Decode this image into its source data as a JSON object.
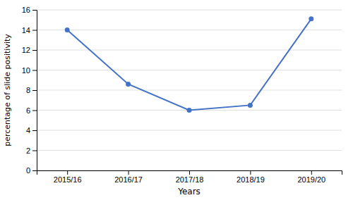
{
  "chart_data": {
    "type": "line",
    "categories": [
      "2015/16",
      "2016/17",
      "2017/18",
      "2018/19",
      "2019/20"
    ],
    "values": [
      14.0,
      8.6,
      6.0,
      6.5,
      15.1
    ],
    "color": "#4472C4",
    "marker": "circle",
    "xlabel": "Years",
    "ylabel": "percentage of slide positivity",
    "ylim": [
      0,
      16
    ],
    "yticks": [
      0,
      2,
      4,
      6,
      8,
      10,
      12,
      14,
      16
    ],
    "grid": true
  }
}
